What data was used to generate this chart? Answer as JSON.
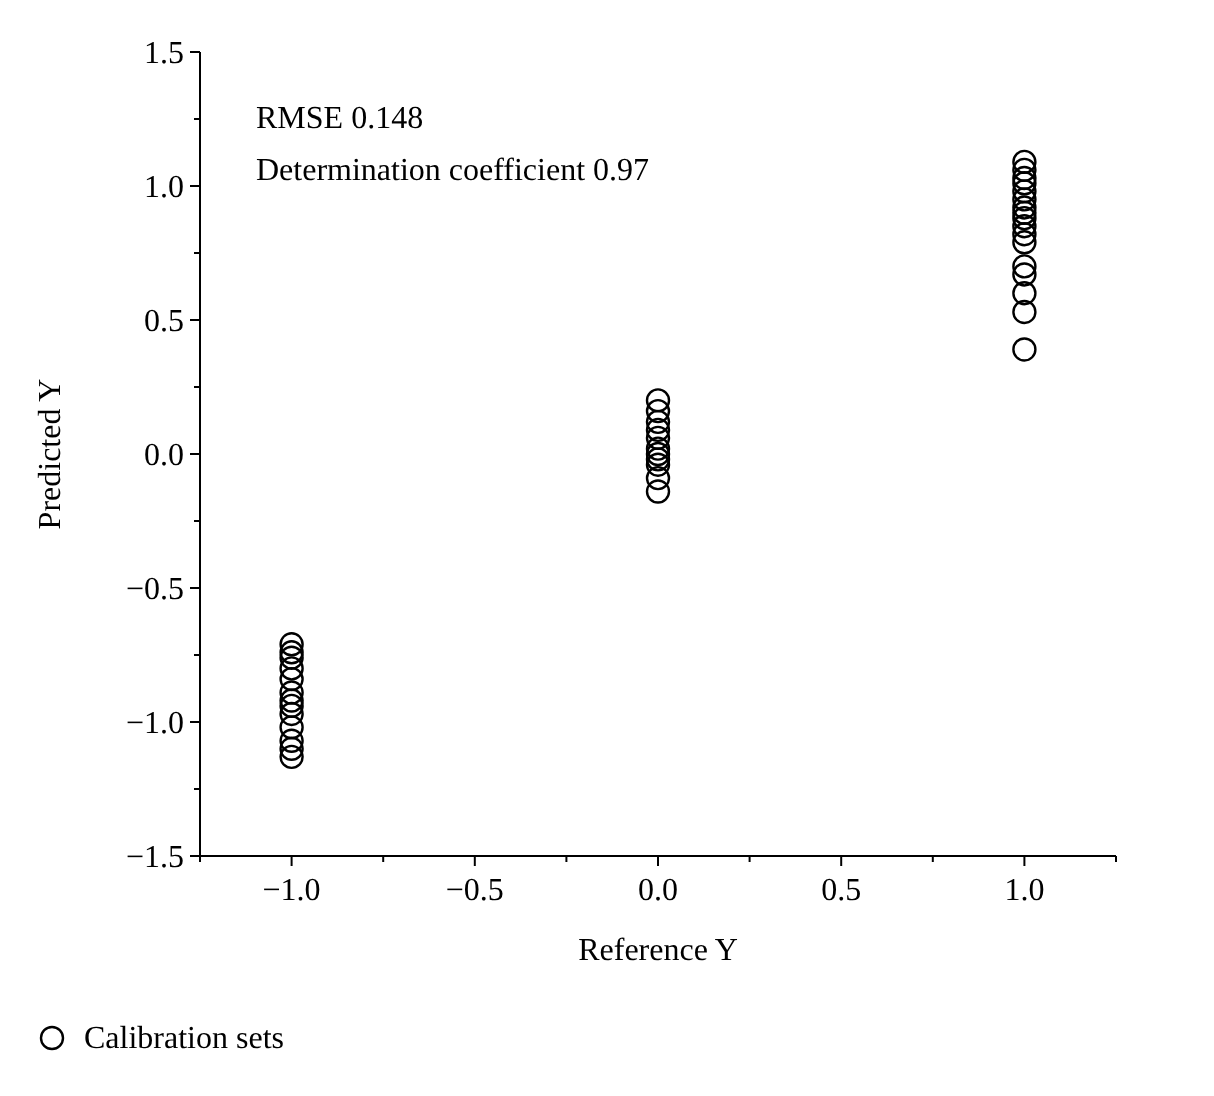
{
  "chart_data": {
    "type": "scatter",
    "xlabel": "Reference Y",
    "ylabel": "Predicted Y",
    "annotations": [
      "RMSE 0.148",
      "Determination coefficient 0.97"
    ],
    "x": [
      -1,
      -1,
      -1,
      -1,
      -1,
      -1,
      -1,
      -1,
      -1,
      -1,
      -1,
      -1,
      -1,
      0,
      0,
      0,
      0,
      0,
      0,
      0,
      0,
      0,
      0,
      0,
      1,
      1,
      1,
      1,
      1,
      1,
      1,
      1,
      1,
      1,
      1,
      1,
      1,
      1,
      1,
      1,
      1
    ],
    "series": [
      {
        "name": "Calibration sets",
        "color": "#000000",
        "values": [
          -0.71,
          -0.74,
          -0.76,
          -0.8,
          -0.84,
          -0.89,
          -0.92,
          -0.94,
          -0.97,
          -1.02,
          -1.07,
          -1.1,
          -1.13,
          0.2,
          0.16,
          0.12,
          0.09,
          0.06,
          0.02,
          0,
          -0.02,
          -0.04,
          -0.09,
          -0.14,
          1.09,
          1.06,
          1.03,
          1.01,
          0.98,
          0.95,
          0.92,
          0.9,
          0.88,
          0.85,
          0.82,
          0.79,
          0.7,
          0.67,
          0.6,
          0.53,
          0.39
        ]
      }
    ],
    "xlim": [
      -1.25,
      1.25
    ],
    "ylim": [
      -1.5,
      1.5
    ],
    "xticks": [
      {
        "value": -1.25,
        "label": null
      },
      {
        "value": -1,
        "label": "−1.0"
      },
      {
        "value": -0.75,
        "label": null
      },
      {
        "value": -0.5,
        "label": "−0.5"
      },
      {
        "value": -0.25,
        "label": null
      },
      {
        "value": 0,
        "label": "0.0"
      },
      {
        "value": 0.25,
        "label": null
      },
      {
        "value": 0.5,
        "label": "0.5"
      },
      {
        "value": 0.75,
        "label": null
      },
      {
        "value": 1,
        "label": "1.0"
      },
      {
        "value": 1.25,
        "label": null
      }
    ],
    "yticks": [
      {
        "value": -1.5,
        "label": "−1.5"
      },
      {
        "value": -1.25,
        "label": null
      },
      {
        "value": -1,
        "label": "−1.0"
      },
      {
        "value": -0.75,
        "label": null
      },
      {
        "value": -0.5,
        "label": "−0.5"
      },
      {
        "value": -0.25,
        "label": null
      },
      {
        "value": 0,
        "label": "0.0"
      },
      {
        "value": 0.25,
        "label": null
      },
      {
        "value": 0.5,
        "label": "0.5"
      },
      {
        "value": 0.75,
        "label": null
      },
      {
        "value": 1,
        "label": "1.0"
      },
      {
        "value": 1.25,
        "label": null
      },
      {
        "value": 1.5,
        "label": "1.5"
      }
    ],
    "marker": "circle",
    "legend": "bottom left",
    "grid": false
  }
}
